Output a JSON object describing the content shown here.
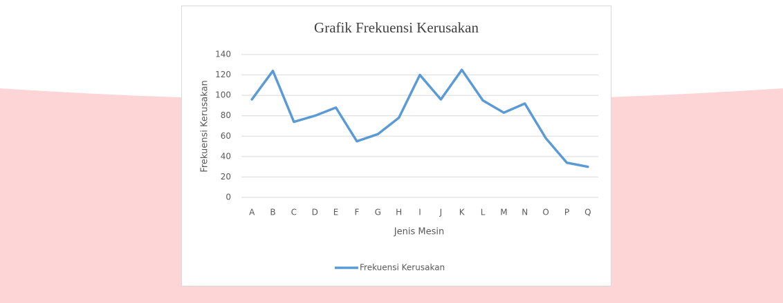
{
  "chart_data": {
    "type": "line",
    "title": "Grafik Frekuensi Kerusakan",
    "x_label": "Jenis Mesin",
    "y_label": "Frekuensi Kerusakan",
    "categories": [
      "A",
      "B",
      "C",
      "D",
      "E",
      "F",
      "G",
      "H",
      "I",
      "J",
      "K",
      "L",
      "M",
      "N",
      "O",
      "P",
      "Q"
    ],
    "series": [
      {
        "name": "Frekuensi Kerusakan",
        "color": "#5b9bd5",
        "values": [
          96,
          124,
          74,
          80,
          88,
          55,
          62,
          78,
          120,
          96,
          125,
          95,
          83,
          92,
          58,
          34,
          30
        ]
      }
    ],
    "ylim": [
      0,
      140
    ],
    "yticks": [
      0,
      20,
      40,
      60,
      80,
      100,
      120,
      140
    ],
    "grid": true,
    "legend": "bottom"
  }
}
